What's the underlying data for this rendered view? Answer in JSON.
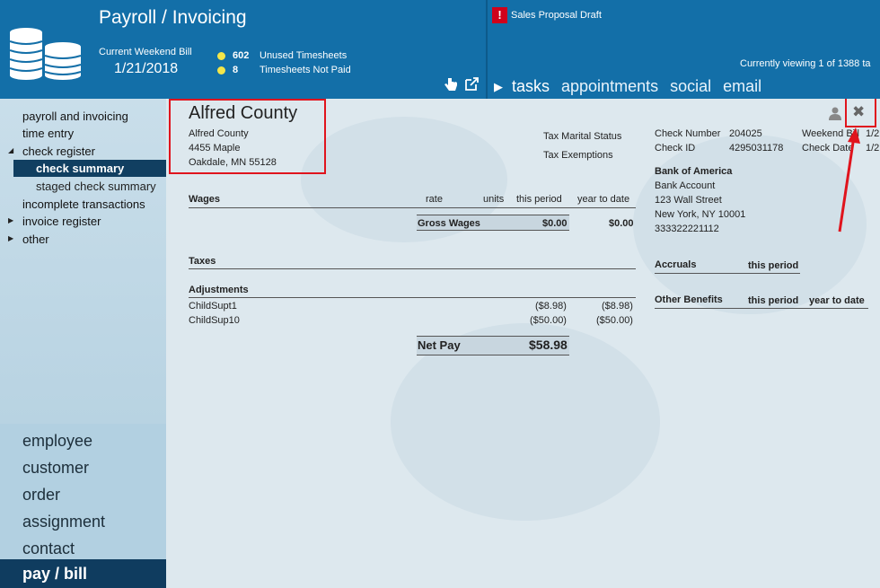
{
  "header": {
    "title": "Payroll / Invoicing",
    "bill_label": "Current Weekend Bill",
    "bill_date": "1/21/2018",
    "stats": [
      {
        "count": "602",
        "label": "Unused Timesheets"
      },
      {
        "count": "8",
        "label": "Timesheets Not Paid"
      }
    ],
    "alert_mark": "!",
    "alert_text": "Sales  Proposal Draft",
    "viewing": "Currently viewing 1 of 1388 ta",
    "tabs": [
      "tasks",
      "appointments",
      "social",
      "email"
    ]
  },
  "sidebar": {
    "items": [
      {
        "label": "payroll and invoicing"
      },
      {
        "label": "time entry"
      },
      {
        "label": "check register"
      },
      {
        "label": "check summary"
      },
      {
        "label": "staged check summary"
      },
      {
        "label": "incomplete transactions"
      },
      {
        "label": "invoice register"
      },
      {
        "label": "other"
      }
    ],
    "big_items": [
      "employee",
      "customer",
      "order",
      "assignment",
      "contact",
      "pay / bill"
    ]
  },
  "check": {
    "company": "Alfred County",
    "address1": "Alfred County",
    "address2": "4455 Maple",
    "address3": "Oakdale, MN  55128",
    "tax_marital_label": "Tax Marital Status",
    "tax_exemptions_label": "Tax Exemptions",
    "check_number_label": "Check Number",
    "check_number": "204025",
    "weekend_bill_label": "Weekend Bill",
    "weekend_bill_value": "1/2",
    "check_id_label": "Check ID",
    "check_id": "4295031178",
    "check_date_label": "Check Date",
    "check_date_value": "1/2",
    "bank_name": "Bank of America",
    "bank_account_label": "Bank Account",
    "bank_street": "123 Wall Street",
    "bank_city": "New York, NY 10001",
    "bank_routing": "333322221112",
    "wages": {
      "label": "Wages",
      "columns": [
        "rate",
        "units",
        "this period",
        "year to date"
      ],
      "gross_label": "Gross Wages",
      "gross_period": "$0.00",
      "gross_ytd": "$0.00"
    },
    "taxes_label": "Taxes",
    "adjustments": {
      "label": "Adjustments",
      "rows": [
        {
          "name": "ChildSupt1",
          "period": "($8.98)",
          "ytd": "($8.98)"
        },
        {
          "name": "ChildSup10",
          "period": "($50.00)",
          "ytd": "($50.00)"
        }
      ]
    },
    "net_pay_label": "Net Pay",
    "net_pay": "$58.98",
    "accruals_label": "Accruals",
    "accruals_col": "this period",
    "other_benefits_label": "Other Benefits",
    "other_benefits_cols": [
      "this period",
      "year to date"
    ]
  },
  "colors": {
    "header": "#136fa8",
    "sidebar_selected": "#113f61",
    "highlight": "#e0141d",
    "stat_dot": "#f3e64a"
  },
  "icons": [
    "coins-stack-icon",
    "hand-pointer-icon",
    "popout-icon",
    "person-icon",
    "close-icon",
    "play-icon"
  ]
}
